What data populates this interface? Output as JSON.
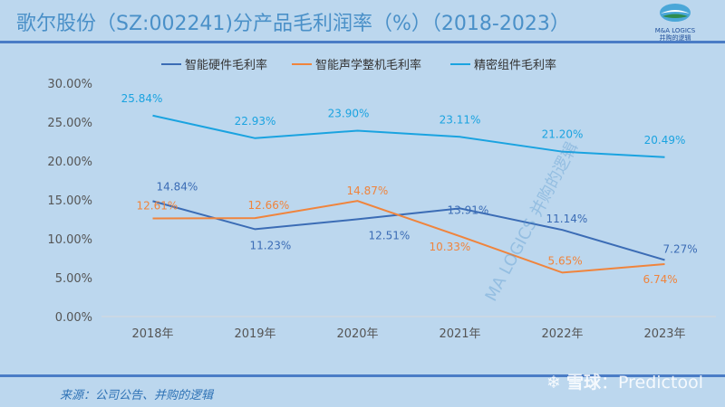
{
  "header": {
    "title": "歌尔股份（SZ:002241)分产品毛利润率（%）（2018-2023）"
  },
  "logo": {
    "line1": "M&A LOGICS",
    "line2": "并购的逻辑"
  },
  "footer": {
    "source": "来源：公司公告、并购的逻辑",
    "watermark_mark": "雪球",
    "watermark_text": "：Predictool",
    "diagonal_watermark": "MA LOGICS 并购的逻辑"
  },
  "chart_data": {
    "type": "line",
    "categories": [
      "2018年",
      "2019年",
      "2020年",
      "2021年",
      "2022年",
      "2023年"
    ],
    "ylim": [
      0,
      30
    ],
    "yticks": [
      "0.00%",
      "5.00%",
      "10.00%",
      "15.00%",
      "20.00%",
      "25.00%",
      "30.00%"
    ],
    "grid": false,
    "legend_position": "top",
    "series": [
      {
        "name": "智能硬件毛利率",
        "color": "#3b6cb5",
        "values": [
          14.84,
          11.23,
          12.51,
          13.91,
          11.14,
          7.27
        ],
        "labels": [
          "14.84%",
          "11.23%",
          "12.51%",
          "13.91%",
          "11.14%",
          "7.27%"
        ]
      },
      {
        "name": "智能声学整机毛利率",
        "color": "#f0843c",
        "values": [
          12.61,
          12.66,
          14.87,
          10.33,
          5.65,
          6.74
        ],
        "labels": [
          "12.61%",
          "12.66%",
          "14.87%",
          "10.33%",
          "5.65%",
          "6.74%"
        ]
      },
      {
        "name": "精密组件毛利率",
        "color": "#1aa3e0",
        "values": [
          25.84,
          22.93,
          23.9,
          23.11,
          21.2,
          20.49
        ],
        "labels": [
          "25.84%",
          "22.93%",
          "23.90%",
          "23.11%",
          "21.20%",
          "20.49%"
        ]
      }
    ]
  }
}
